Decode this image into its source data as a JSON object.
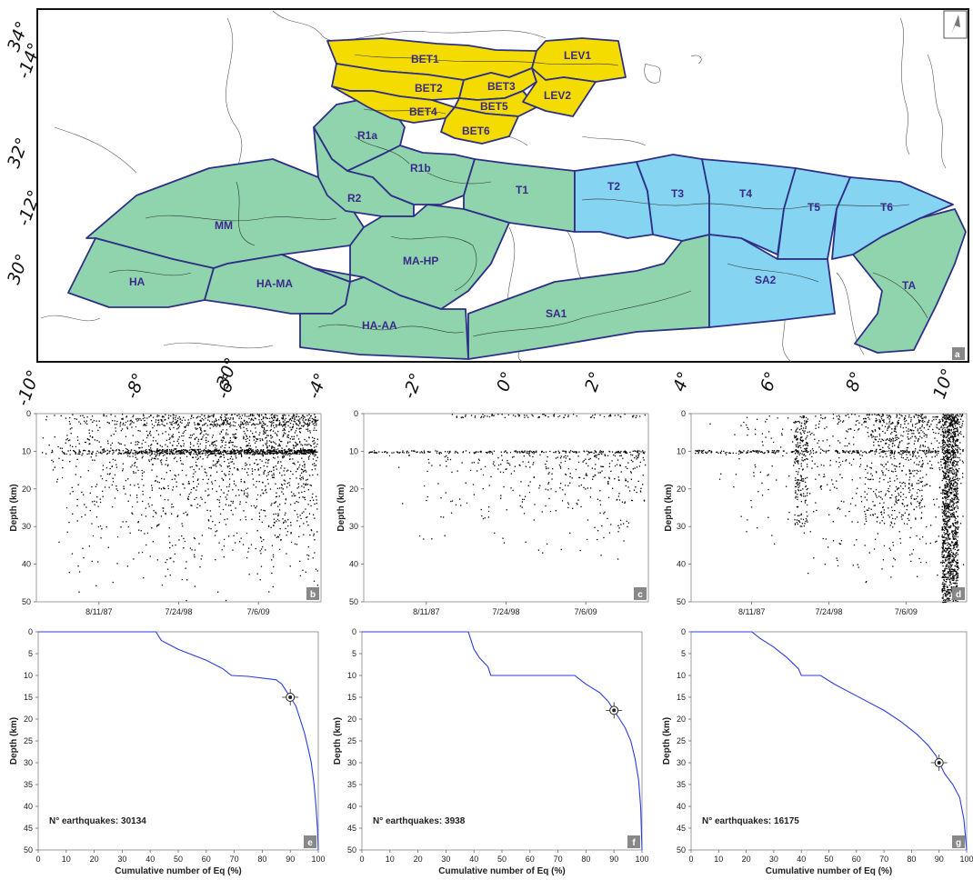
{
  "map": {
    "lat_ticks": [
      "34°",
      "32°",
      "30°"
    ],
    "rot_lat_ticks": [
      "-14°",
      "-12°",
      "30°"
    ],
    "lon_ticks": [
      "-10°",
      "-8°",
      "-6°",
      "-4°",
      "-2°",
      "0°",
      "2°",
      "4°",
      "6°",
      "8°",
      "10°"
    ],
    "zones": [
      {
        "id": "BET1",
        "label": "BET1",
        "group": "yellow"
      },
      {
        "id": "BET2",
        "label": "BET2",
        "group": "yellow"
      },
      {
        "id": "BET3",
        "label": "BET3",
        "group": "yellow"
      },
      {
        "id": "BET4",
        "label": "BET4",
        "group": "yellow"
      },
      {
        "id": "BET5",
        "label": "BET5",
        "group": "yellow"
      },
      {
        "id": "BET6",
        "label": "BET6",
        "group": "yellow"
      },
      {
        "id": "LEV1",
        "label": "LEV1",
        "group": "yellow"
      },
      {
        "id": "LEV2",
        "label": "LEV2",
        "group": "yellow"
      },
      {
        "id": "R1a",
        "label": "R1a",
        "group": "green"
      },
      {
        "id": "R1b",
        "label": "R1b",
        "group": "green"
      },
      {
        "id": "R2",
        "label": "R2",
        "group": "green"
      },
      {
        "id": "T1",
        "label": "T1",
        "group": "green"
      },
      {
        "id": "MM",
        "label": "MM",
        "group": "green"
      },
      {
        "id": "HA",
        "label": "HA",
        "group": "green"
      },
      {
        "id": "HA-MA",
        "label": "HA-MA",
        "group": "green"
      },
      {
        "id": "MA-HP",
        "label": "MA-HP",
        "group": "green"
      },
      {
        "id": "HA-AA",
        "label": "HA-AA",
        "group": "green"
      },
      {
        "id": "SA1",
        "label": "SA1",
        "group": "green"
      },
      {
        "id": "TA",
        "label": "TA",
        "group": "green"
      },
      {
        "id": "T2",
        "label": "T2",
        "group": "blue"
      },
      {
        "id": "T3",
        "label": "T3",
        "group": "blue"
      },
      {
        "id": "T4",
        "label": "T4",
        "group": "blue"
      },
      {
        "id": "T5",
        "label": "T5",
        "group": "blue"
      },
      {
        "id": "T6",
        "label": "T6",
        "group": "blue"
      },
      {
        "id": "SA2",
        "label": "SA2",
        "group": "blue"
      }
    ],
    "colors": {
      "yellow": "#f5dc00",
      "green": "#8fd4ad",
      "blue": "#84d4f2",
      "outline": "#2e2f86"
    },
    "panel_label": "a",
    "icon": "north-arrow-icon"
  },
  "chart_data": [
    {
      "panel": "b",
      "type": "scatter",
      "ylabel": "Depth (km)",
      "x_tick_labels": [
        "8/11/87",
        "7/24/98",
        "7/6/09"
      ],
      "ylim": [
        50,
        0
      ],
      "yticks": [
        0,
        10,
        20,
        30,
        40,
        50
      ],
      "description_density": "dense"
    },
    {
      "panel": "c",
      "type": "scatter",
      "ylabel": "Depth (km)",
      "x_tick_labels": [
        "8/11/87",
        "7/24/98",
        "7/6/09"
      ],
      "ylim": [
        50,
        0
      ],
      "yticks": [
        0,
        10,
        20,
        30,
        40,
        50
      ],
      "description_density": "sparse"
    },
    {
      "panel": "d",
      "type": "scatter",
      "ylabel": "Depth (km)",
      "x_tick_labels": [
        "8/11/87",
        "7/24/98",
        "7/6/09"
      ],
      "ylim": [
        50,
        0
      ],
      "yticks": [
        0,
        10,
        20,
        30,
        40,
        50
      ],
      "description_density": "dense-late"
    },
    {
      "panel": "e",
      "type": "line",
      "xlabel": "Cumulative number of Eq (%)",
      "ylabel": "Depth (km)",
      "xlim": [
        0,
        100
      ],
      "ylim": [
        50,
        0
      ],
      "xticks": [
        0,
        10,
        20,
        30,
        40,
        50,
        60,
        70,
        80,
        90,
        100
      ],
      "yticks": [
        0,
        5,
        10,
        15,
        20,
        25,
        30,
        35,
        40,
        45,
        50
      ],
      "count_label": "N° earthquakes: 30134",
      "marker": {
        "x": 90,
        "y": 15
      },
      "x": [
        0,
        42,
        44,
        50,
        60,
        66,
        69,
        75,
        85,
        87,
        88.5,
        90,
        92,
        93.5,
        95,
        96.5,
        97.5,
        98.5,
        99.2,
        99.7,
        100
      ],
      "y": [
        0,
        0,
        2,
        4,
        6.5,
        8.5,
        10,
        10.2,
        11,
        12,
        13.5,
        15,
        17,
        20,
        23,
        27,
        30,
        35,
        40,
        45,
        50
      ]
    },
    {
      "panel": "f",
      "type": "line",
      "xlabel": "Cumulative number of Eq (%)",
      "ylabel": "Depth (km)",
      "xlim": [
        0,
        100
      ],
      "ylim": [
        50,
        0
      ],
      "xticks": [
        0,
        10,
        20,
        30,
        40,
        50,
        60,
        70,
        80,
        90,
        100
      ],
      "yticks": [
        0,
        5,
        10,
        15,
        20,
        25,
        30,
        35,
        40,
        45,
        50
      ],
      "count_label": "N° earthquakes: 3938",
      "marker": {
        "x": 90,
        "y": 18
      },
      "x": [
        0,
        38,
        39,
        40,
        42,
        45,
        46,
        76,
        78,
        80,
        85,
        88,
        90,
        92,
        94,
        96,
        97.5,
        98.8,
        99.5,
        100
      ],
      "y": [
        0,
        0,
        2,
        4,
        6,
        8,
        10,
        10,
        11,
        12,
        14,
        16,
        18,
        20,
        22,
        25,
        29,
        34,
        40,
        50
      ]
    },
    {
      "panel": "g",
      "type": "line",
      "xlabel": "Cumulative number of Eq (%)",
      "ylabel": "Depth (km)",
      "xlim": [
        0,
        100
      ],
      "ylim": [
        50,
        0
      ],
      "xticks": [
        0,
        10,
        20,
        30,
        40,
        50,
        60,
        70,
        80,
        90,
        100
      ],
      "yticks": [
        0,
        5,
        10,
        15,
        20,
        25,
        30,
        35,
        40,
        45,
        50
      ],
      "count_label": "N° earthquakes: 16175",
      "marker": {
        "x": 90,
        "y": 30
      },
      "x": [
        0,
        22,
        25,
        30,
        35,
        39,
        40,
        47,
        52,
        58,
        64,
        70,
        76,
        82,
        86,
        89,
        90,
        92,
        95,
        97.5,
        99,
        100
      ],
      "y": [
        0,
        0,
        1.5,
        3.5,
        6,
        8.5,
        10,
        10,
        12,
        14,
        16,
        18,
        20.5,
        23.5,
        26,
        28.5,
        30,
        32.5,
        35,
        38,
        43,
        50
      ]
    }
  ]
}
